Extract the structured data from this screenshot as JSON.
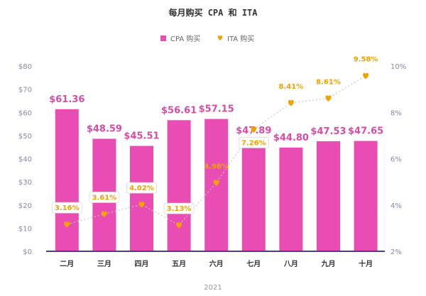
{
  "chart_data": {
    "type": "bar",
    "title": "每月购买 CPA 和 ITA",
    "categories": [
      "二月",
      "三月",
      "四月",
      "五月",
      "六月",
      "七月",
      "八月",
      "九月",
      "十月"
    ],
    "x_group_label": "2021",
    "series": [
      {
        "name": "CPA 购买",
        "type": "bar",
        "axis": "left",
        "color": "#e94db4",
        "values": [
          61.36,
          48.59,
          45.51,
          56.61,
          57.15,
          47.89,
          44.8,
          47.53,
          47.65
        ],
        "labels": [
          "$61.36",
          "$48.59",
          "$45.51",
          "$56.61",
          "$57.15",
          "$47.89",
          "$44.80",
          "$47.53",
          "$47.65"
        ]
      },
      {
        "name": "ITA 购买",
        "type": "line",
        "axis": "right",
        "color": "#f0a300",
        "values": [
          3.16,
          3.61,
          4.02,
          3.13,
          4.96,
          7.26,
          8.41,
          8.61,
          9.58
        ],
        "labels": [
          "3.16%",
          "3.61%",
          "4.02%",
          "3.13%",
          "4.96%",
          "7.26%",
          "8.41%",
          "8.61%",
          "9.58%"
        ]
      }
    ],
    "y_left": {
      "min": 0,
      "max": 80,
      "ticks": [
        "$0",
        "$10",
        "$20",
        "$30",
        "$40",
        "$50",
        "$60",
        "$70",
        "$80"
      ]
    },
    "y_right": {
      "min": 2,
      "max": 10,
      "ticks": [
        "2%",
        "4%",
        "6%",
        "8%",
        "10%"
      ]
    },
    "legend_position": "top-center",
    "grid": false
  }
}
